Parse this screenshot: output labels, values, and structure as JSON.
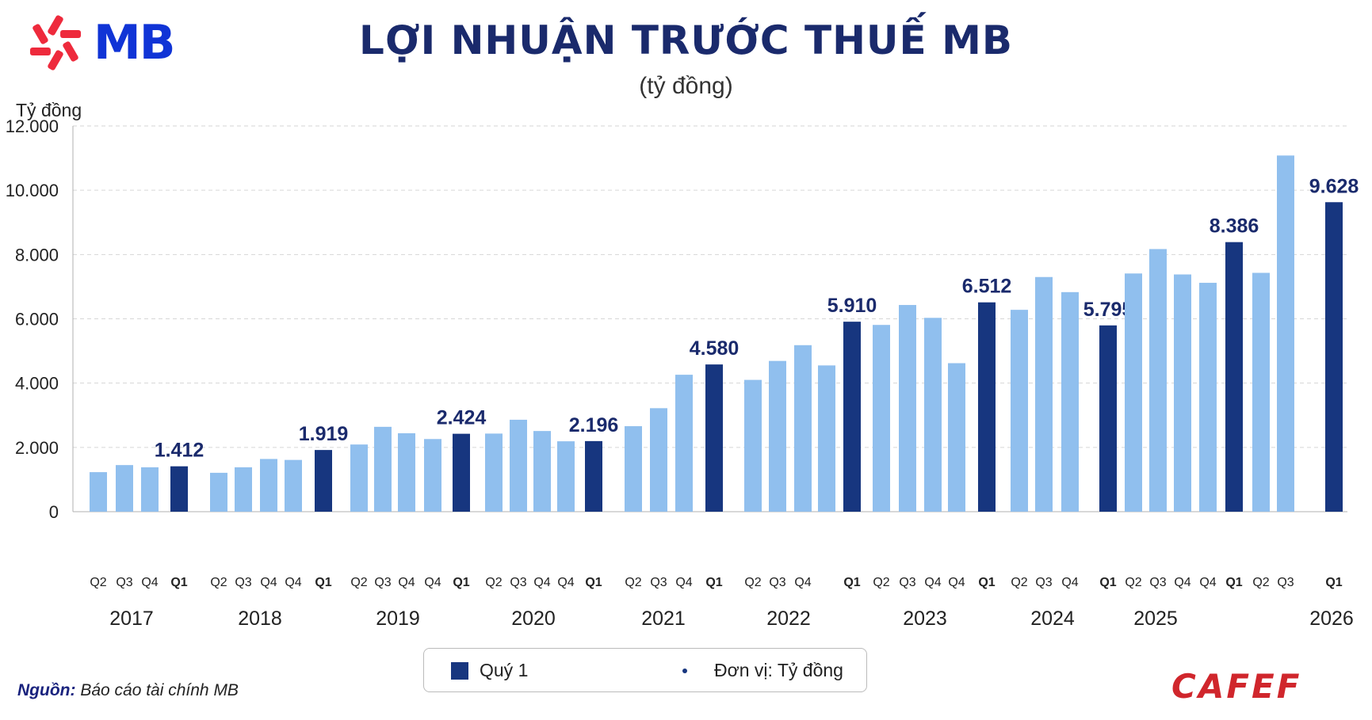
{
  "brand": {
    "logo_text": "MB",
    "logo_color": "#1034d6",
    "star_color": "#ee2a3c",
    "source_brand": "CAFEF",
    "source_brand_color": "#d0262c"
  },
  "colors": {
    "q1": "#17367f",
    "other": "#90bfee",
    "title": "#1a2a6c",
    "label": "#1a2a6c",
    "grid": "#d6d6d6",
    "axis_text": "#222222"
  },
  "source": {
    "label": "Nguồn:",
    "text": "Báo cáo tài chính MB"
  },
  "legend": {
    "q1_label": "Quý 1",
    "unit_text": "Đơn vị:  Tỷ đồng"
  },
  "chart_data": {
    "type": "bar",
    "title": "LỢI NHUẬN TRƯỚC THUẾ MB",
    "subtitle": "(tỷ đồng)",
    "ylabel": "Tỷ đồng",
    "ylim": [
      0,
      12000
    ],
    "yticks": [
      0,
      2000,
      4000,
      6000,
      8000,
      10000,
      12000
    ],
    "ytick_labels": [
      "0",
      "2.000",
      "4.000",
      "6.000",
      "8.000",
      "10.000",
      "12.000"
    ],
    "grid": true,
    "legend_position": "bottom-center",
    "bars": [
      {
        "tick": "Q2",
        "value": 1230,
        "q1": false
      },
      {
        "tick": "Q3",
        "value": 1450,
        "q1": false
      },
      {
        "tick": "Q4",
        "value": 1380,
        "q1": false
      },
      {
        "tick": "Q1",
        "value": 1412,
        "q1": true,
        "label": "1.412"
      },
      {
        "tick": "Q2",
        "value": 1210,
        "q1": false
      },
      {
        "tick": "Q3",
        "value": 1380,
        "q1": false
      },
      {
        "tick": "Q4",
        "value": 1640,
        "q1": false
      },
      {
        "tick": "Q4",
        "value": 1610,
        "q1": false
      },
      {
        "tick": "Q1",
        "value": 1919,
        "q1": true,
        "label": "1.919"
      },
      {
        "tick": "Q2",
        "value": 2090,
        "q1": false
      },
      {
        "tick": "Q3",
        "value": 2640,
        "q1": false
      },
      {
        "tick": "Q4",
        "value": 2440,
        "q1": false
      },
      {
        "tick": "Q4",
        "value": 2260,
        "q1": false
      },
      {
        "tick": "Q1",
        "value": 2424,
        "q1": true,
        "label": "2.424"
      },
      {
        "tick": "Q2",
        "value": 2430,
        "q1": false
      },
      {
        "tick": "Q3",
        "value": 2860,
        "q1": false
      },
      {
        "tick": "Q4",
        "value": 2510,
        "q1": false
      },
      {
        "tick": "Q4",
        "value": 2190,
        "q1": false
      },
      {
        "tick": "Q1",
        "value": 2196,
        "q1": true,
        "label": "2.196"
      },
      {
        "tick": "Q2",
        "value": 2660,
        "q1": false
      },
      {
        "tick": "Q3",
        "value": 3220,
        "q1": false
      },
      {
        "tick": "Q4",
        "value": 4260,
        "q1": false
      },
      {
        "tick": "Q1",
        "value": 4580,
        "q1": true,
        "label": "4.580"
      },
      {
        "tick": "Q2",
        "value": 4100,
        "q1": false
      },
      {
        "tick": "Q3",
        "value": 4690,
        "q1": false
      },
      {
        "tick": "Q4",
        "value": 5180,
        "q1": false
      },
      {
        "tick": "",
        "value": 4550,
        "q1": false
      },
      {
        "tick": "Q1",
        "value": 5910,
        "q1": true,
        "label": "5.910"
      },
      {
        "tick": "Q2",
        "value": 5810,
        "q1": false
      },
      {
        "tick": "Q3",
        "value": 6430,
        "q1": false
      },
      {
        "tick": "Q4",
        "value": 6030,
        "q1": false
      },
      {
        "tick": "Q4",
        "value": 4620,
        "q1": false
      },
      {
        "tick": "Q1",
        "value": 6512,
        "q1": true,
        "label": "6.512"
      },
      {
        "tick": "Q2",
        "value": 6280,
        "q1": false
      },
      {
        "tick": "Q3",
        "value": 7300,
        "q1": false
      },
      {
        "tick": "Q4",
        "value": 6830,
        "q1": false
      },
      {
        "tick": "Q1",
        "value": 5795,
        "q1": true,
        "label": "5.795"
      },
      {
        "tick": "Q2",
        "value": 7410,
        "q1": false
      },
      {
        "tick": "Q3",
        "value": 8170,
        "q1": false
      },
      {
        "tick": "Q4",
        "value": 7380,
        "q1": false
      },
      {
        "tick": "Q4",
        "value": 7120,
        "q1": false
      },
      {
        "tick": "Q1",
        "value": 8386,
        "q1": true,
        "label": "8.386"
      },
      {
        "tick": "Q2",
        "value": 7430,
        "q1": false
      },
      {
        "tick": "Q3",
        "value": 11080,
        "q1": false
      },
      {
        "tick": "Q1",
        "value": 9628,
        "q1": true,
        "label": "9.628"
      }
    ],
    "year_labels": [
      "2017",
      "2018",
      "2019",
      "2020",
      "2021",
      "2022",
      "2023",
      "2024",
      "2025",
      "2026"
    ]
  }
}
